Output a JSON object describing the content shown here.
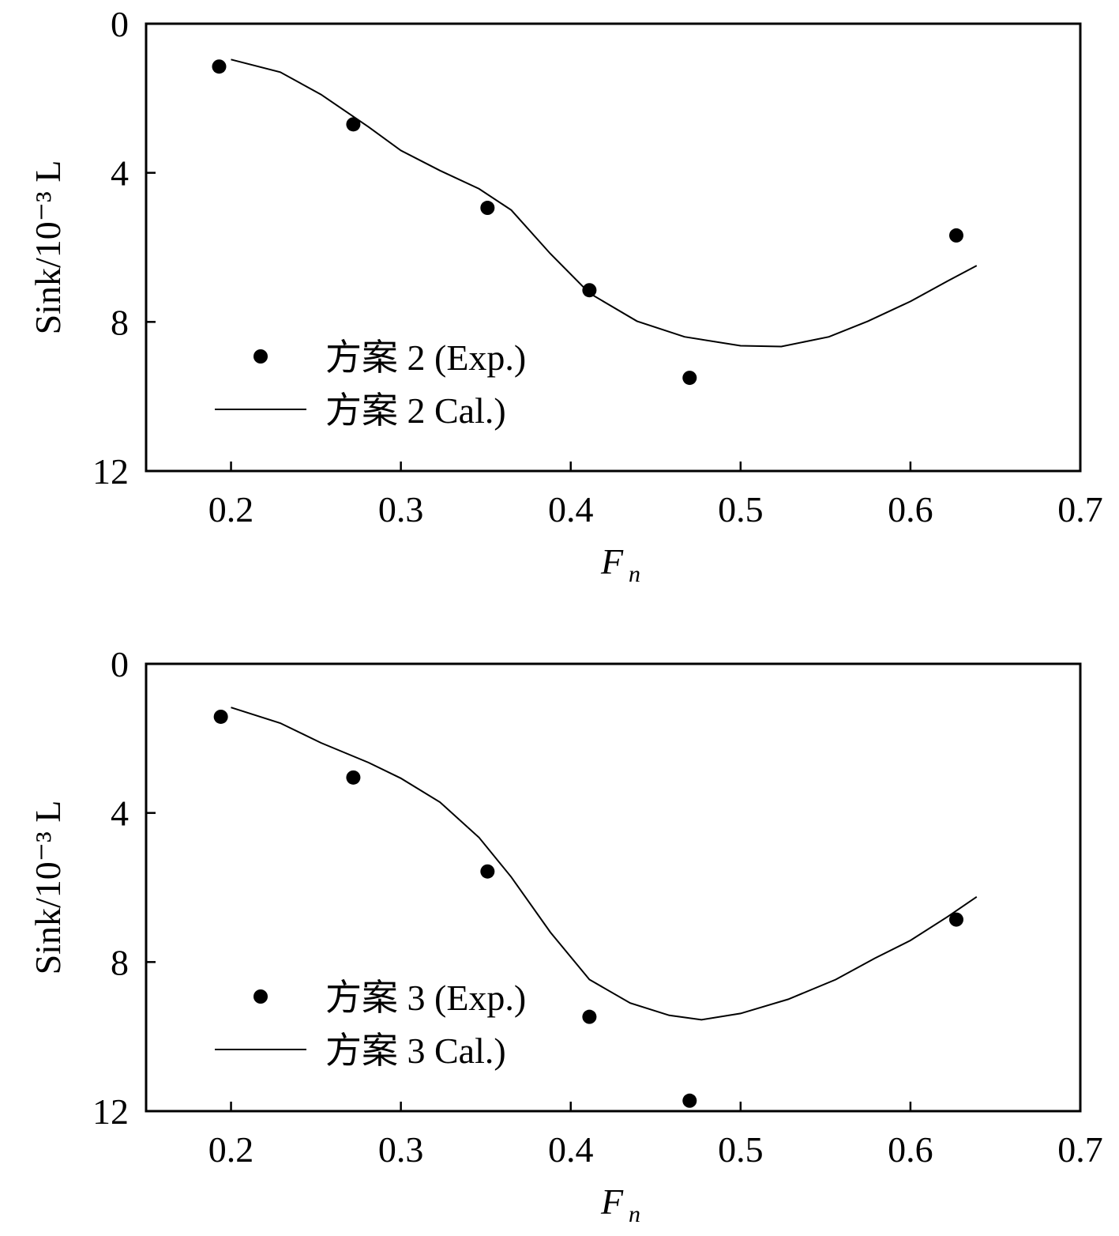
{
  "chart_data": [
    {
      "type": "scatter+line",
      "xlabel": "F",
      "xlabel_sub": "n",
      "ylabel": "Sink/10⁻³ L",
      "xlim": [
        0.15,
        0.7
      ],
      "ylim": [
        0,
        12
      ],
      "y_inverted": true,
      "xticks": [
        "0.2",
        "0.3",
        "0.4",
        "0.5",
        "0.6",
        "0.7"
      ],
      "yticks": [
        "0",
        "4",
        "8",
        "12"
      ],
      "legend_position": "bottom-left",
      "series": [
        {
          "name": "方案 2 (Exp.)",
          "kind": "scatter",
          "x": [
            0.193,
            0.272,
            0.351,
            0.411,
            0.47,
            0.627
          ],
          "y": [
            1.15,
            2.7,
            4.94,
            7.15,
            9.5,
            5.68
          ]
        },
        {
          "name": "方案 2 Cal.)",
          "kind": "line",
          "x": [
            0.2,
            0.229,
            0.253,
            0.281,
            0.3,
            0.323,
            0.346,
            0.365,
            0.388,
            0.411,
            0.439,
            0.467,
            0.5,
            0.524,
            0.552,
            0.575,
            0.6,
            0.622,
            0.639
          ],
          "y": [
            0.96,
            1.3,
            1.9,
            2.77,
            3.4,
            3.94,
            4.43,
            5.0,
            6.17,
            7.23,
            7.98,
            8.4,
            8.64,
            8.66,
            8.4,
            7.98,
            7.45,
            6.9,
            6.49
          ]
        }
      ]
    },
    {
      "type": "scatter+line",
      "xlabel": "F",
      "xlabel_sub": "n",
      "ylabel": "Sink/10⁻³ L",
      "xlim": [
        0.15,
        0.7
      ],
      "ylim": [
        0,
        12
      ],
      "y_inverted": true,
      "xticks": [
        "0.2",
        "0.3",
        "0.4",
        "0.5",
        "0.6",
        "0.7"
      ],
      "yticks": [
        "0",
        "4",
        "8",
        "12"
      ],
      "legend_position": "bottom-left",
      "series": [
        {
          "name": "方案 3 (Exp.)",
          "kind": "scatter",
          "x": [
            0.194,
            0.272,
            0.351,
            0.411,
            0.47,
            0.627
          ],
          "y": [
            1.42,
            3.05,
            5.57,
            9.47,
            11.72,
            6.86
          ]
        },
        {
          "name": "方案 3 Cal.)",
          "kind": "line",
          "x": [
            0.2,
            0.229,
            0.253,
            0.281,
            0.3,
            0.323,
            0.346,
            0.365,
            0.388,
            0.411,
            0.435,
            0.458,
            0.477,
            0.5,
            0.528,
            0.556,
            0.579,
            0.6,
            0.622,
            0.639
          ],
          "y": [
            1.17,
            1.59,
            2.12,
            2.65,
            3.07,
            3.71,
            4.66,
            5.72,
            7.2,
            8.47,
            9.1,
            9.43,
            9.55,
            9.38,
            9.0,
            8.47,
            7.9,
            7.42,
            6.78,
            6.25
          ]
        }
      ]
    }
  ]
}
